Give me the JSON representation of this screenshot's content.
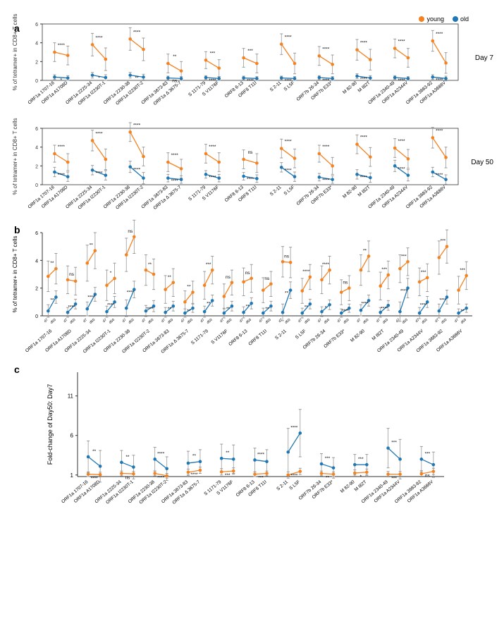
{
  "colors": {
    "young": "#f58220",
    "old": "#1f77b4",
    "axis": "#333333",
    "grid": "#cccccc",
    "errorbar": "#999999",
    "background": "#ffffff"
  },
  "legend": [
    {
      "label": "young",
      "color": "#f58220"
    },
    {
      "label": "old",
      "color": "#1f77b4"
    }
  ],
  "epitopes": [
    "ORF1a 1707-16",
    "ORF1a A1708D",
    "ORF1a 2225-34",
    "ORF1a I2230T-1",
    "ORF1a 2230-38",
    "ORF1a I2230T-2",
    "ORF1a 3673-83",
    "ORF1a Δ 3675-7",
    "S 1171-79",
    "S V1176F",
    "ORF8 6-13",
    "ORF8 T11I",
    "S 2-11",
    "S L5F",
    "ORF7b 26-34",
    "ORF7b E33*",
    "M 82-90",
    "M I82T",
    "ORF1a 2340-49",
    "ORF1a A2344V",
    "ORF1a 3683-92",
    "ORF1a A3686V"
  ],
  "panel_a": {
    "ylabel": "% of tetramer+ in CD8+ T cells",
    "label_fontsize": 9,
    "tick_fontsize": 7,
    "day7": {
      "side_label": "Day 7",
      "ylim": [
        0,
        6
      ],
      "yticks": [
        0,
        2,
        4,
        6
      ],
      "young": [
        {
          "lo": 3.0,
          "hi": 2.65,
          "err": 1.0,
          "sig": "****"
        },
        {
          "lo": 3.8,
          "hi": 2.25,
          "err": 1.2,
          "sig": "****"
        },
        {
          "lo": 4.4,
          "hi": 3.3,
          "err": 1.2,
          "sig": "****"
        },
        {
          "lo": 1.8,
          "hi": 1.0,
          "err": 1.0,
          "sig": "**"
        },
        {
          "lo": 2.15,
          "hi": 1.3,
          "err": 0.9,
          "sig": "***"
        },
        {
          "lo": 2.4,
          "hi": 1.8,
          "err": 1.0,
          "sig": "***"
        },
        {
          "lo": 3.85,
          "hi": 1.8,
          "err": 1.1,
          "sig": "****"
        },
        {
          "lo": 2.6,
          "hi": 1.7,
          "err": 1.0,
          "sig": "****"
        },
        {
          "lo": 3.25,
          "hi": 2.2,
          "err": 1.1,
          "sig": "****"
        },
        {
          "lo": 3.4,
          "hi": 2.4,
          "err": 1.0,
          "sig": "****"
        },
        {
          "lo": 4.2,
          "hi": 1.85,
          "err": 1.1,
          "sig": "****"
        }
      ],
      "old": [
        {
          "lo": 0.35,
          "hi": 0.25,
          "err": 0.25,
          "sig": "*"
        },
        {
          "lo": 0.55,
          "hi": 0.3,
          "err": 0.3,
          "sig": "*"
        },
        {
          "lo": 0.55,
          "hi": 0.35,
          "err": 0.3,
          "sig": "**"
        },
        {
          "lo": 0.25,
          "hi": 0.2,
          "err": 0.2,
          "sig": "ns"
        },
        {
          "lo": 0.3,
          "hi": 0.2,
          "err": 0.2,
          "sig": "****"
        },
        {
          "lo": 0.25,
          "hi": 0.2,
          "err": 0.2,
          "sig": "****"
        },
        {
          "lo": 0.25,
          "hi": 0.2,
          "err": 0.2,
          "sig": "****"
        },
        {
          "lo": 0.3,
          "hi": 0.2,
          "err": 0.2,
          "sig": "****"
        },
        {
          "lo": 0.45,
          "hi": 0.25,
          "err": 0.25,
          "sig": "****"
        },
        {
          "lo": 0.3,
          "hi": 0.2,
          "err": 0.2,
          "sig": "****"
        },
        {
          "lo": 0.35,
          "hi": 0.2,
          "err": 0.25,
          "sig": "****"
        }
      ]
    },
    "day50": {
      "side_label": "Day 50",
      "ylim": [
        0,
        6
      ],
      "yticks": [
        0,
        2,
        4,
        6
      ],
      "young": [
        {
          "lo": 3.3,
          "hi": 2.4,
          "err": 0.9,
          "sig": "****"
        },
        {
          "lo": 4.7,
          "hi": 2.7,
          "err": 1.1,
          "sig": "****"
        },
        {
          "lo": 5.6,
          "hi": 3.0,
          "err": 1.0,
          "sig": "****"
        },
        {
          "lo": 2.4,
          "hi": 1.7,
          "err": 1.0,
          "sig": "****"
        },
        {
          "lo": 3.3,
          "hi": 2.4,
          "err": 1.0,
          "sig": "****"
        },
        {
          "lo": 2.7,
          "hi": 2.3,
          "err": 1.0,
          "sig": "ns"
        },
        {
          "lo": 3.85,
          "hi": 2.8,
          "err": 1.0,
          "sig": "****"
        },
        {
          "lo": 3.3,
          "hi": 2.0,
          "err": 0.9,
          "sig": "****"
        },
        {
          "lo": 4.3,
          "hi": 2.95,
          "err": 1.0,
          "sig": "****"
        },
        {
          "lo": 3.9,
          "hi": 2.75,
          "err": 1.0,
          "sig": "****"
        },
        {
          "lo": 5.0,
          "hi": 2.9,
          "err": 1.1,
          "sig": "****"
        }
      ],
      "old": [
        {
          "lo": 1.35,
          "hi": 0.85,
          "err": 0.5,
          "sig": "****"
        },
        {
          "lo": 1.55,
          "hi": 1.0,
          "err": 0.5,
          "sig": "****"
        },
        {
          "lo": 1.9,
          "hi": 0.7,
          "err": 0.6,
          "sig": "****"
        },
        {
          "lo": 0.7,
          "hi": 0.55,
          "err": 0.4,
          "sig": "****"
        },
        {
          "lo": 1.1,
          "hi": 0.7,
          "err": 0.4,
          "sig": "****"
        },
        {
          "lo": 0.9,
          "hi": 0.65,
          "err": 0.4,
          "sig": "****"
        },
        {
          "lo": 1.85,
          "hi": 0.85,
          "err": 0.5,
          "sig": "****"
        },
        {
          "lo": 0.8,
          "hi": 0.55,
          "err": 0.4,
          "sig": "****"
        },
        {
          "lo": 1.1,
          "hi": 0.75,
          "err": 0.5,
          "sig": "****"
        },
        {
          "lo": 2.0,
          "hi": 1.0,
          "err": 0.6,
          "sig": "****"
        },
        {
          "lo": 1.35,
          "hi": 0.55,
          "err": 0.5,
          "sig": "****"
        }
      ]
    }
  },
  "panel_b": {
    "ylabel": "% of tetramer+ in CD8+ T cells",
    "ylim": [
      0,
      6
    ],
    "yticks": [
      0,
      2,
      4,
      6
    ],
    "xlabels": [
      "d7",
      "d50"
    ],
    "young": [
      {
        "lo": 2.85,
        "hi": 3.4,
        "err": 1.1,
        "sig": "**"
      },
      {
        "lo": 2.6,
        "hi": 2.5,
        "err": 1.0,
        "sig": "ns"
      },
      {
        "lo": 3.8,
        "hi": 4.7,
        "err": 1.3,
        "sig": "**"
      },
      {
        "lo": 2.2,
        "hi": 2.7,
        "err": 1.1,
        "sig": "*"
      },
      {
        "lo": 4.4,
        "hi": 5.7,
        "err": 1.2,
        "sig": "ns"
      },
      {
        "lo": 3.3,
        "hi": 3.0,
        "err": 1.1,
        "sig": "**"
      },
      {
        "lo": 1.9,
        "hi": 2.4,
        "err": 1.0,
        "sig": "**"
      },
      {
        "lo": 1.0,
        "hi": 1.7,
        "err": 0.8,
        "sig": "**"
      },
      {
        "lo": 2.2,
        "hi": 3.3,
        "err": 1.0,
        "sig": "***"
      },
      {
        "lo": 1.4,
        "hi": 2.4,
        "err": 0.9,
        "sig": "ns"
      },
      {
        "lo": 2.45,
        "hi": 2.7,
        "err": 1.0,
        "sig": "ns"
      },
      {
        "lo": 1.85,
        "hi": 2.3,
        "err": 0.9,
        "sig": "ns"
      },
      {
        "lo": 3.9,
        "hi": 3.85,
        "err": 1.1,
        "sig": "ns"
      },
      {
        "lo": 1.8,
        "hi": 2.8,
        "err": 0.9,
        "sig": "****"
      },
      {
        "lo": 2.6,
        "hi": 3.3,
        "err": 1.0,
        "sig": "****"
      },
      {
        "lo": 1.7,
        "hi": 2.0,
        "err": 0.9,
        "sig": "ns"
      },
      {
        "lo": 3.3,
        "hi": 4.3,
        "err": 1.1,
        "sig": "**"
      },
      {
        "lo": 2.15,
        "hi": 2.95,
        "err": 1.0,
        "sig": "***"
      },
      {
        "lo": 3.4,
        "hi": 3.9,
        "err": 1.0,
        "sig": "***"
      },
      {
        "lo": 2.45,
        "hi": 2.75,
        "err": 1.0,
        "sig": "***"
      },
      {
        "lo": 4.2,
        "hi": 5.0,
        "err": 1.2,
        "sig": "***"
      },
      {
        "lo": 1.85,
        "hi": 2.9,
        "err": 1.0,
        "sig": "***"
      }
    ],
    "old": [
      {
        "lo": 0.35,
        "hi": 1.35,
        "err": 0.45,
        "sig": "**"
      },
      {
        "lo": 0.25,
        "hi": 0.85,
        "err": 0.35,
        "sig": "****"
      },
      {
        "lo": 0.5,
        "hi": 1.55,
        "err": 0.5,
        "sig": "****"
      },
      {
        "lo": 0.3,
        "hi": 1.0,
        "err": 0.4,
        "sig": "****"
      },
      {
        "lo": 0.55,
        "hi": 1.9,
        "err": 0.6,
        "sig": "****"
      },
      {
        "lo": 0.35,
        "hi": 0.7,
        "err": 0.4,
        "sig": "****"
      },
      {
        "lo": 0.25,
        "hi": 0.7,
        "err": 0.35,
        "sig": "**"
      },
      {
        "lo": 0.2,
        "hi": 0.55,
        "err": 0.3,
        "sig": "**"
      },
      {
        "lo": 0.3,
        "hi": 1.1,
        "err": 0.4,
        "sig": "**"
      },
      {
        "lo": 0.2,
        "hi": 0.7,
        "err": 0.35,
        "sig": "**"
      },
      {
        "lo": 0.25,
        "hi": 0.9,
        "err": 0.4,
        "sig": "**"
      },
      {
        "lo": 0.2,
        "hi": 0.7,
        "err": 0.35,
        "sig": "**"
      },
      {
        "lo": 0.25,
        "hi": 1.85,
        "err": 0.6,
        "sig": "**"
      },
      {
        "lo": 0.2,
        "hi": 0.85,
        "err": 0.35,
        "sig": "**"
      },
      {
        "lo": 0.3,
        "hi": 0.8,
        "err": 0.35,
        "sig": "*"
      },
      {
        "lo": 0.2,
        "hi": 0.55,
        "err": 0.3,
        "sig": "****"
      },
      {
        "lo": 0.4,
        "hi": 1.1,
        "err": 0.4,
        "sig": "****"
      },
      {
        "lo": 0.25,
        "hi": 0.75,
        "err": 0.35,
        "sig": "****"
      },
      {
        "lo": 0.3,
        "hi": 2.0,
        "err": 0.7,
        "sig": "****"
      },
      {
        "lo": 0.2,
        "hi": 1.0,
        "err": 0.4,
        "sig": "****"
      },
      {
        "lo": 0.35,
        "hi": 1.35,
        "err": 0.5,
        "sig": "****"
      },
      {
        "lo": 0.2,
        "hi": 0.55,
        "err": 0.3,
        "sig": "**"
      }
    ]
  },
  "panel_c": {
    "ylabel": "Fold-change of Day50: Day7",
    "ylim": [
      0.8,
      14
    ],
    "yticks": [
      1,
      6,
      11
    ],
    "young": [
      {
        "lo": 1.1,
        "hi": 1.05,
        "err": 0.3,
        "sig": "****"
      },
      {
        "lo": 1.2,
        "hi": 1.15,
        "err": 0.3,
        "sig": "ns"
      },
      {
        "lo": 1.2,
        "hi": 0.9,
        "err": 0.3,
        "sig": "****"
      },
      {
        "lo": 1.35,
        "hi": 1.6,
        "err": 0.4,
        "sig": "****"
      },
      {
        "lo": 1.4,
        "hi": 1.5,
        "err": 0.4,
        "sig": "***"
      },
      {
        "lo": 1.1,
        "hi": 1.2,
        "err": 0.3,
        "sig": "***"
      },
      {
        "lo": 1.0,
        "hi": 1.45,
        "err": 0.4,
        "sig": "****"
      },
      {
        "lo": 1.2,
        "hi": 1.1,
        "err": 0.3,
        "sig": "**"
      },
      {
        "lo": 1.25,
        "hi": 1.35,
        "err": 0.4,
        "sig": "*"
      },
      {
        "lo": 1.1,
        "hi": 1.1,
        "err": 0.35,
        "sig": "***"
      },
      {
        "lo": 1.15,
        "hi": 1.45,
        "err": 0.4,
        "sig": "ns"
      }
    ],
    "old": [
      {
        "lo": 3.3,
        "hi": 2.1,
        "err": 2.0,
        "sig": "**"
      },
      {
        "lo": 2.6,
        "hi": 2.0,
        "err": 1.5,
        "sig": "**"
      },
      {
        "lo": 3.0,
        "hi": 1.8,
        "err": 1.5,
        "sig": "****"
      },
      {
        "lo": 2.5,
        "hi": 2.7,
        "err": 1.5,
        "sig": "**"
      },
      {
        "lo": 3.1,
        "hi": 3.0,
        "err": 1.8,
        "sig": "**"
      },
      {
        "lo": 2.9,
        "hi": 2.7,
        "err": 1.5,
        "sig": "****"
      },
      {
        "lo": 3.9,
        "hi": 6.3,
        "err": 3.0,
        "sig": "****"
      },
      {
        "lo": 2.4,
        "hi": 1.9,
        "err": 1.3,
        "sig": "***"
      },
      {
        "lo": 2.3,
        "hi": 2.3,
        "err": 1.3,
        "sig": "***"
      },
      {
        "lo": 4.4,
        "hi": 3.0,
        "err": 2.5,
        "sig": "***"
      },
      {
        "lo": 3.0,
        "hi": 2.3,
        "err": 1.6,
        "sig": "***"
      }
    ]
  }
}
